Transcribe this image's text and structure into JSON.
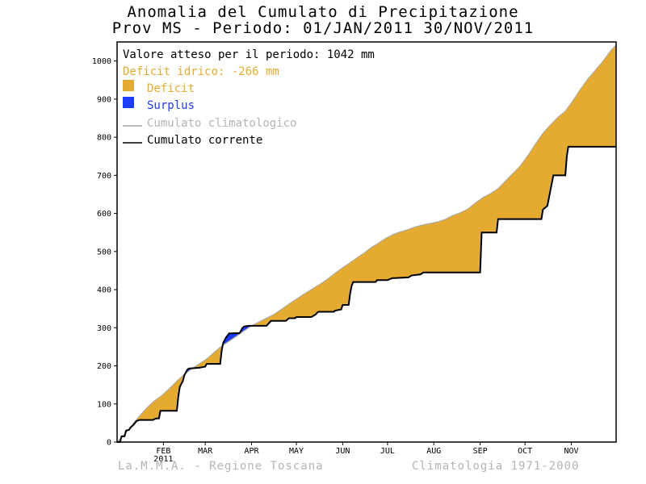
{
  "chart_data": {
    "type": "area",
    "title": "Anomalia del Cumulato di Precipitazione",
    "subtitle": "Prov MS - Periodo: 01/JAN/2011 30/NOV/2011",
    "ylim": [
      0,
      1050
    ],
    "yticks": [
      0,
      100,
      200,
      300,
      400,
      500,
      600,
      700,
      800,
      900,
      1000
    ],
    "xlim": [
      0,
      334
    ],
    "months": [
      {
        "label": "FEB",
        "day": 31
      },
      {
        "label": "MAR",
        "day": 59
      },
      {
        "label": "APR",
        "day": 90
      },
      {
        "label": "MAY",
        "day": 120
      },
      {
        "label": "JUN",
        "day": 151
      },
      {
        "label": "JUL",
        "day": 181
      },
      {
        "label": "AUG",
        "day": 212
      },
      {
        "label": "SEP",
        "day": 243
      },
      {
        "label": "OCT",
        "day": 273
      },
      {
        "label": "NOV",
        "day": 304
      }
    ],
    "year_label": "2011",
    "legend": {
      "expected": "Valore atteso per il periodo: 1042 mm",
      "deficit_text": "Deficit idrico: -266 mm",
      "deficit": "Deficit",
      "surplus": "Surplus",
      "climatological": "Cumulato climatologico",
      "current": "Cumulato corrente"
    },
    "colors": {
      "deficit": "#e5ab30",
      "surplus": "#1e3cff",
      "climatological": "#a8a8a8",
      "current": "#000000",
      "deficit_text": "#e5ab30",
      "surplus_text": "#1e3cff",
      "clim_text": "#b4b4b4"
    },
    "climatological": [
      [
        0,
        0
      ],
      [
        5,
        20
      ],
      [
        10,
        45
      ],
      [
        15,
        68
      ],
      [
        20,
        90
      ],
      [
        25,
        108
      ],
      [
        30,
        122
      ],
      [
        35,
        140
      ],
      [
        40,
        160
      ],
      [
        45,
        178
      ],
      [
        50,
        192
      ],
      [
        55,
        205
      ],
      [
        60,
        218
      ],
      [
        65,
        235
      ],
      [
        70,
        252
      ],
      [
        75,
        265
      ],
      [
        80,
        278
      ],
      [
        85,
        292
      ],
      [
        90,
        305
      ],
      [
        95,
        315
      ],
      [
        100,
        325
      ],
      [
        105,
        335
      ],
      [
        110,
        348
      ],
      [
        115,
        362
      ],
      [
        120,
        375
      ],
      [
        125,
        388
      ],
      [
        130,
        400
      ],
      [
        135,
        412
      ],
      [
        140,
        425
      ],
      [
        145,
        440
      ],
      [
        150,
        455
      ],
      [
        155,
        468
      ],
      [
        160,
        482
      ],
      [
        165,
        495
      ],
      [
        170,
        510
      ],
      [
        175,
        522
      ],
      [
        180,
        535
      ],
      [
        185,
        545
      ],
      [
        190,
        552
      ],
      [
        195,
        558
      ],
      [
        200,
        565
      ],
      [
        205,
        570
      ],
      [
        210,
        574
      ],
      [
        215,
        578
      ],
      [
        220,
        585
      ],
      [
        225,
        595
      ],
      [
        230,
        602
      ],
      [
        235,
        612
      ],
      [
        240,
        628
      ],
      [
        245,
        642
      ],
      [
        250,
        652
      ],
      [
        255,
        665
      ],
      [
        260,
        685
      ],
      [
        265,
        705
      ],
      [
        270,
        725
      ],
      [
        275,
        752
      ],
      [
        280,
        782
      ],
      [
        285,
        810
      ],
      [
        290,
        832
      ],
      [
        295,
        852
      ],
      [
        300,
        868
      ],
      [
        305,
        895
      ],
      [
        310,
        925
      ],
      [
        315,
        952
      ],
      [
        320,
        975
      ],
      [
        325,
        998
      ],
      [
        330,
        1025
      ],
      [
        334,
        1042
      ]
    ],
    "current": [
      [
        0,
        0
      ],
      [
        2,
        0
      ],
      [
        3,
        15
      ],
      [
        5,
        15
      ],
      [
        6,
        30
      ],
      [
        8,
        32
      ],
      [
        9,
        38
      ],
      [
        11,
        45
      ],
      [
        13,
        55
      ],
      [
        15,
        58
      ],
      [
        24,
        58
      ],
      [
        26,
        62
      ],
      [
        28,
        62
      ],
      [
        29,
        82
      ],
      [
        40,
        82
      ],
      [
        41,
        120
      ],
      [
        42,
        145
      ],
      [
        44,
        160
      ],
      [
        45,
        175
      ],
      [
        47,
        190
      ],
      [
        48,
        193
      ],
      [
        55,
        195
      ],
      [
        59,
        198
      ],
      [
        60,
        205
      ],
      [
        69,
        205
      ],
      [
        70,
        240
      ],
      [
        71,
        260
      ],
      [
        73,
        275
      ],
      [
        75,
        285
      ],
      [
        82,
        286
      ],
      [
        84,
        300
      ],
      [
        85,
        303
      ],
      [
        88,
        305
      ],
      [
        100,
        305
      ],
      [
        103,
        318
      ],
      [
        113,
        318
      ],
      [
        115,
        325
      ],
      [
        119,
        325
      ],
      [
        120,
        328
      ],
      [
        130,
        328
      ],
      [
        133,
        335
      ],
      [
        134,
        340
      ],
      [
        135,
        342
      ],
      [
        145,
        342
      ],
      [
        146,
        345
      ],
      [
        150,
        348
      ],
      [
        151,
        360
      ],
      [
        155,
        360
      ],
      [
        156,
        390
      ],
      [
        157,
        410
      ],
      [
        158,
        420
      ],
      [
        173,
        420
      ],
      [
        174,
        425
      ],
      [
        181,
        425
      ],
      [
        184,
        430
      ],
      [
        195,
        432
      ],
      [
        197,
        437
      ],
      [
        203,
        440
      ],
      [
        205,
        445
      ],
      [
        243,
        445
      ],
      [
        244,
        550
      ],
      [
        254,
        550
      ],
      [
        255,
        585
      ],
      [
        284,
        585
      ],
      [
        285,
        610
      ],
      [
        288,
        620
      ],
      [
        289,
        640
      ],
      [
        292,
        700
      ],
      [
        300,
        700
      ],
      [
        301,
        750
      ],
      [
        302,
        775
      ],
      [
        334,
        775
      ]
    ]
  },
  "footer": {
    "left": "La.M.M.A. - Regione Toscana",
    "right": "Climatologia 1971-2000"
  }
}
